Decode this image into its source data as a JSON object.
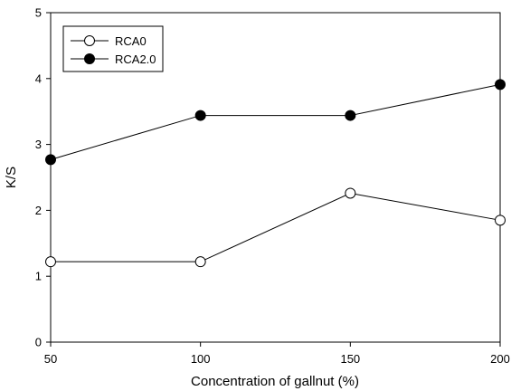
{
  "chart_data": {
    "type": "line",
    "title": "",
    "xlabel": "Concentration of gallnut (%)",
    "ylabel": "K/S",
    "x": [
      50,
      100,
      150,
      200
    ],
    "xticks": [
      50,
      100,
      150,
      200
    ],
    "yticks": [
      0,
      1,
      2,
      3,
      4,
      5
    ],
    "xlim": [
      50,
      200
    ],
    "ylim": [
      0,
      5
    ],
    "grid": false,
    "legend_position": "top-left",
    "series": [
      {
        "name": "RCA0",
        "values": [
          1.22,
          1.22,
          2.26,
          1.85
        ],
        "marker": "open-circle",
        "color": "#ffffff"
      },
      {
        "name": "RCA2.0",
        "values": [
          2.77,
          3.44,
          3.44,
          3.91
        ],
        "marker": "filled-circle",
        "color": "#000000"
      }
    ]
  }
}
